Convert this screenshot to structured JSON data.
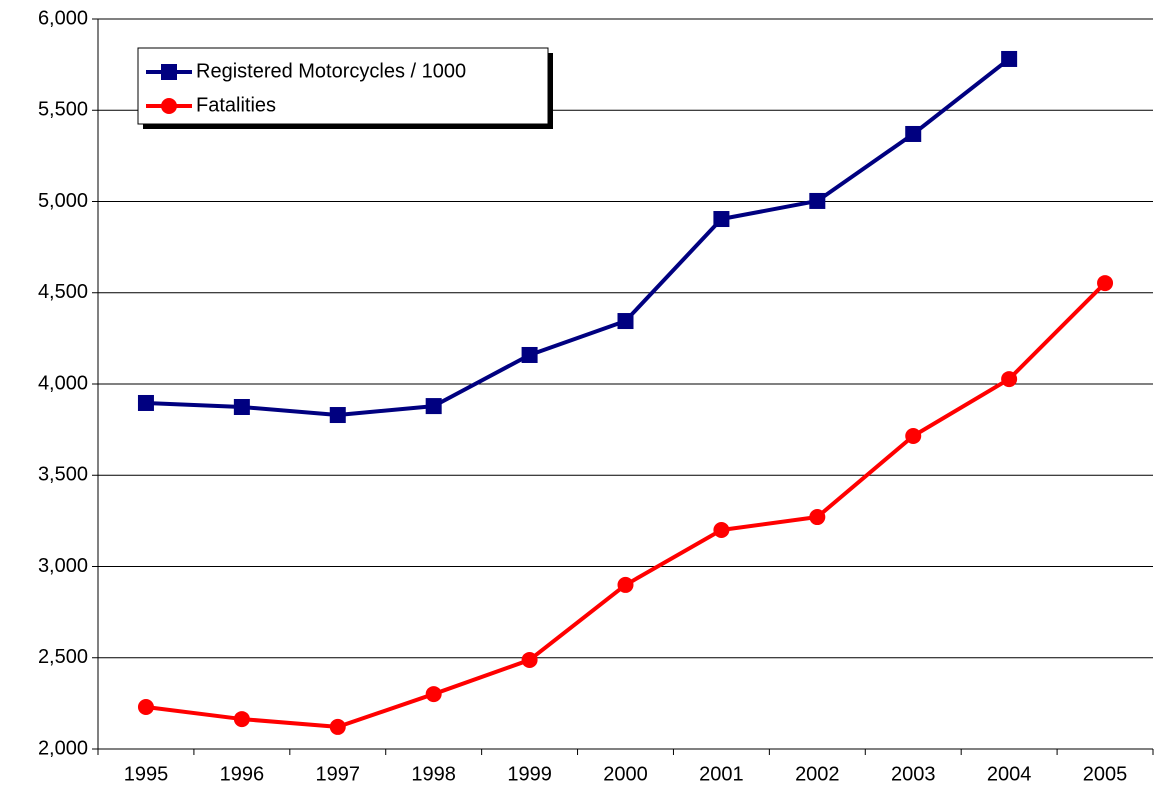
{
  "chart_data": {
    "type": "line",
    "categories": [
      "1995",
      "1996",
      "1997",
      "1998",
      "1999",
      "2000",
      "2001",
      "2002",
      "2003",
      "2004",
      "2005"
    ],
    "series": [
      {
        "name": "Registered Motorcycles / 1000",
        "color": "#000080",
        "marker": "square",
        "values": [
          3896,
          3874,
          3830,
          3879,
          4159,
          4345,
          4904,
          5003,
          5370,
          5781,
          null
        ]
      },
      {
        "name": "Fatalities",
        "color": "#ff0000",
        "marker": "circle",
        "values": [
          2230,
          2164,
          2121,
          2301,
          2488,
          2899,
          3200,
          3271,
          3715,
          4027,
          4553
        ]
      }
    ],
    "ylim": [
      2000,
      6000
    ],
    "yticks": [
      {
        "value": 2000,
        "label": "2,000"
      },
      {
        "value": 2500,
        "label": "2,500"
      },
      {
        "value": 3000,
        "label": "3,000"
      },
      {
        "value": 3500,
        "label": "3,500"
      },
      {
        "value": 4000,
        "label": "4,000"
      },
      {
        "value": 4500,
        "label": "4,500"
      },
      {
        "value": 5000,
        "label": "5,000"
      },
      {
        "value": 5500,
        "label": "5,500"
      },
      {
        "value": 6000,
        "label": "6,000"
      }
    ],
    "grid": true,
    "legend": "top-left"
  }
}
